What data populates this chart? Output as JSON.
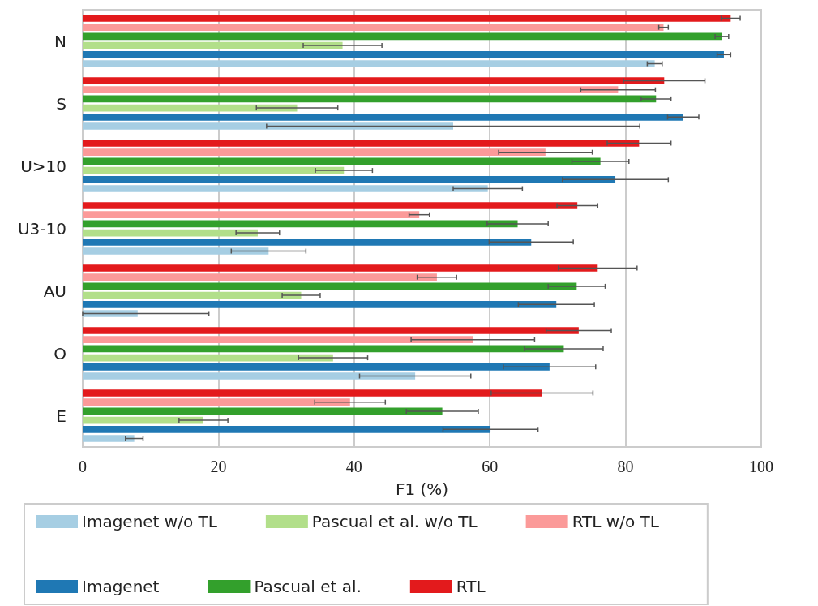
{
  "chart_data": {
    "type": "bar",
    "orientation": "horizontal",
    "xlabel": "F1 (%)",
    "categories": [
      "N",
      "S",
      "U>10",
      "U3-10",
      "AU",
      "O",
      "E"
    ],
    "xlim": [
      0,
      100
    ],
    "xticks": [
      0,
      20,
      40,
      60,
      80,
      100
    ],
    "grid": "x",
    "legend": "bottom",
    "series": [
      {
        "name": "Imagenet w/o TL",
        "color": "#a6cee3",
        "values": [
          84.3,
          54.6,
          59.7,
          27.4,
          8.1,
          49.0,
          7.6
        ],
        "errors": [
          1.1,
          27.5,
          5.1,
          5.5,
          [
            0,
            18.6
          ],
          8.2,
          1.3
        ]
      },
      {
        "name": "Imagenet",
        "color": "#1f78b4",
        "values": [
          94.5,
          88.5,
          78.5,
          66.1,
          69.8,
          68.8,
          60.1
        ],
        "errors": [
          1.0,
          2.3,
          7.8,
          6.2,
          5.6,
          6.8,
          7.0
        ]
      },
      {
        "name": "Pascual et al. w/o TL",
        "color": "#b2df8a",
        "values": [
          38.3,
          31.6,
          38.5,
          25.8,
          32.2,
          36.9,
          17.8
        ],
        "errors": [
          5.8,
          6.0,
          4.2,
          3.2,
          2.8,
          5.1,
          3.6
        ]
      },
      {
        "name": "Pascual et al.",
        "color": "#33a02c",
        "values": [
          94.2,
          84.5,
          76.3,
          64.1,
          72.8,
          70.9,
          53.0
        ],
        "errors": [
          1.0,
          2.2,
          4.2,
          4.5,
          4.2,
          5.8,
          5.3
        ]
      },
      {
        "name": "RTL w/o TL",
        "color": "#fb9a99",
        "values": [
          85.6,
          78.9,
          68.2,
          49.6,
          52.2,
          57.5,
          39.4
        ],
        "errors": [
          0.7,
          5.5,
          6.9,
          1.5,
          2.9,
          9.1,
          5.2
        ]
      },
      {
        "name": "RTL",
        "color": "#e31a1c",
        "values": [
          95.5,
          85.7,
          82.0,
          72.9,
          75.9,
          73.1,
          67.7
        ],
        "errors": [
          1.4,
          6.0,
          4.7,
          3.0,
          5.8,
          4.8,
          7.5
        ]
      }
    ]
  }
}
